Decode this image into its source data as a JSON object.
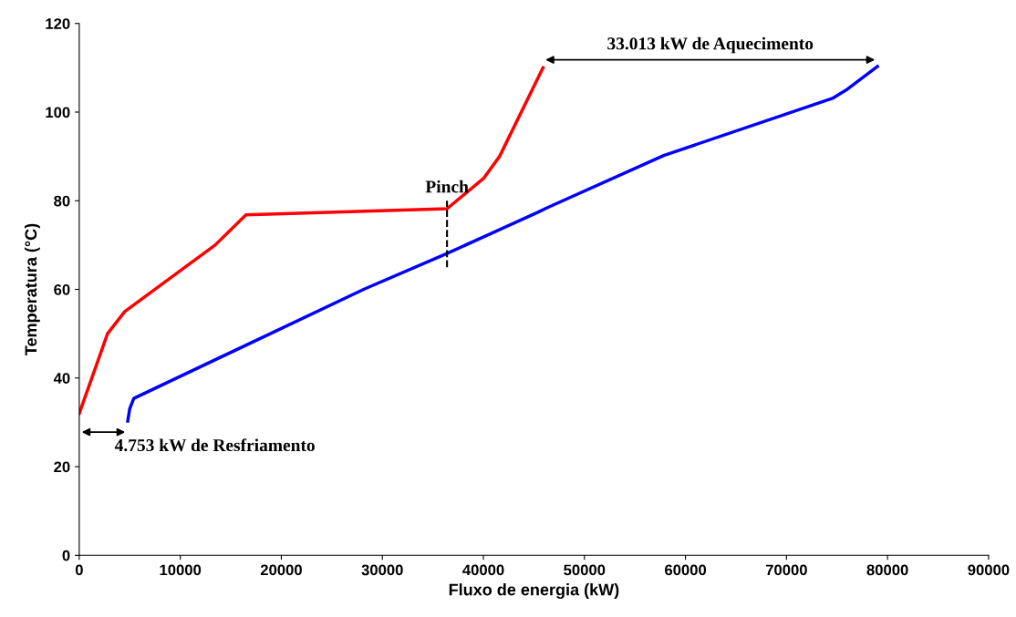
{
  "chart_data": {
    "type": "line",
    "xlabel": "Fluxo de energia (kW)",
    "ylabel": "Temperatura (°C)",
    "xlim": [
      0,
      90000
    ],
    "xticks": [
      0,
      10000,
      20000,
      30000,
      40000,
      50000,
      60000,
      70000,
      80000,
      90000
    ],
    "ylim": [
      0,
      120
    ],
    "yticks": [
      0,
      20,
      40,
      60,
      80,
      100,
      120
    ],
    "grid": false,
    "legend": false,
    "series": [
      {
        "color": "#ff0000",
        "x": [
          0,
          2800,
          4500,
          13450,
          16500,
          36400,
          40000,
          41600,
          45900
        ],
        "values": [
          32,
          50,
          55,
          70,
          76.8,
          78.2,
          85,
          90,
          110
        ]
      },
      {
        "color": "#0000ff",
        "x": [
          4800,
          5000,
          5400,
          28250,
          36400,
          45400,
          46300,
          57850,
          74550,
          76050,
          79000
        ],
        "values": [
          30.3,
          33.1,
          35.4,
          60.1,
          68.1,
          77.4,
          78.4,
          90.2,
          103.1,
          105.2,
          110.3
        ]
      },
      {
        "color": "#000000",
        "line_style": "dashed",
        "x": [
          36400,
          36400
        ],
        "values": [
          65,
          80
        ]
      }
    ],
    "annotations": [
      {
        "text": "Pinch",
        "x": 36400,
        "y": 81
      },
      "4.753 kW de Resfriamento",
      "33.013 kW de Aquecimento"
    ]
  }
}
